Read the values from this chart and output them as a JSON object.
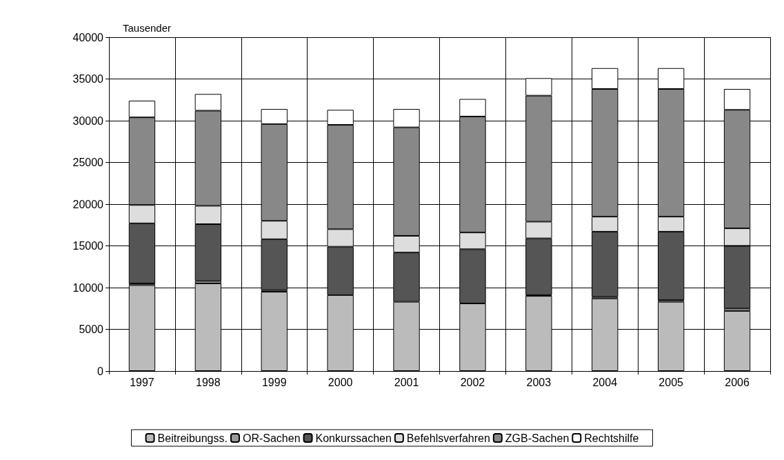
{
  "chart_data": {
    "type": "bar",
    "stacked": true,
    "ylabel": "Tausender",
    "categories": [
      "1997",
      "1998",
      "1999",
      "2000",
      "2001",
      "2002",
      "2003",
      "2004",
      "2005",
      "2006"
    ],
    "series": [
      {
        "name": "Beitreibungss.",
        "color": "#bbbbbb",
        "values": [
          10300,
          10500,
          9500,
          9100,
          8300,
          8100,
          9000,
          8700,
          8300,
          7200
        ]
      },
      {
        "name": "OR-Sachen",
        "color": "#999999",
        "values": [
          200,
          300,
          200,
          null,
          null,
          null,
          100,
          200,
          200,
          300
        ]
      },
      {
        "name": "Konkurssachen",
        "color": "#555555",
        "values": [
          7200,
          6800,
          6100,
          5800,
          5900,
          6500,
          6800,
          7800,
          8200,
          7500
        ]
      },
      {
        "name": "Befehlsverfahren",
        "color": "#dddddd",
        "values": [
          2200,
          2200,
          2200,
          2100,
          2000,
          2000,
          2000,
          1800,
          1800,
          2100
        ]
      },
      {
        "name": "ZGB-Sachen",
        "color": "#888888",
        "values": [
          10500,
          11400,
          11600,
          12500,
          13000,
          13900,
          15100,
          15300,
          15300,
          14200
        ]
      },
      {
        "name": "Rechtshilfe",
        "color": "#ffffff",
        "values": [
          2000,
          2000,
          1800,
          1800,
          2200,
          2100,
          2100,
          2500,
          2500,
          2500
        ]
      }
    ],
    "ylim": [
      0,
      40000
    ],
    "yticks": [
      0,
      5000,
      10000,
      15000,
      20000,
      25000,
      30000,
      35000,
      40000
    ],
    "grid": true,
    "legend": "bottom"
  }
}
